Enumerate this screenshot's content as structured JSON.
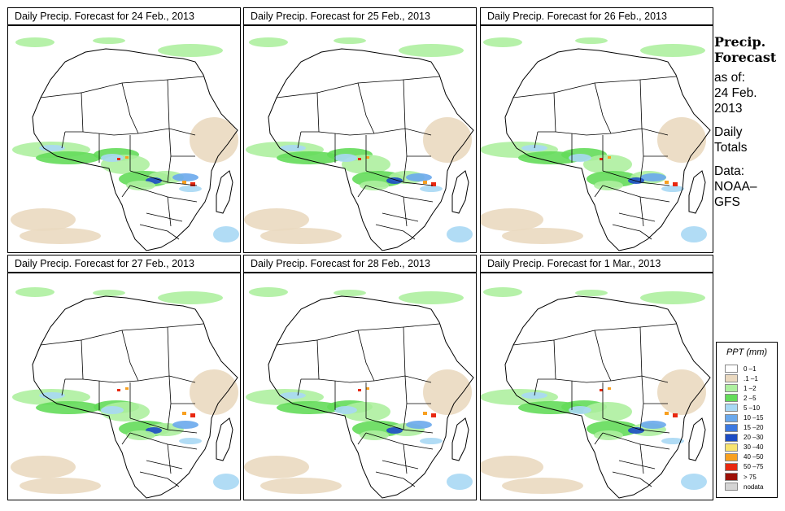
{
  "panels": [
    {
      "title": "Daily Precip. Forecast for  24 Feb., 2013"
    },
    {
      "title": "Daily Precip. Forecast for  25 Feb., 2013"
    },
    {
      "title": "Daily Precip. Forecast for  26 Feb., 2013"
    },
    {
      "title": "Daily Precip. Forecast for  27 Feb., 2013"
    },
    {
      "title": "Daily Precip. Forecast for  28 Feb., 2013"
    },
    {
      "title": "Daily Precip. Forecast for  1 Mar., 2013"
    }
  ],
  "side": {
    "heading1": "Precip.",
    "heading2": "Forecast",
    "as_of": "as of:",
    "date1": "24 Feb.",
    "date2": "2013",
    "daily1": "Daily",
    "daily2": "Totals",
    "data1": "Data:",
    "data2": "NOAA–",
    "data3": "GFS"
  },
  "legend": {
    "title": "PPT (mm)",
    "items": [
      {
        "label": "0 –1",
        "color": "#ffffff"
      },
      {
        "label": ".1 –1",
        "color": "#ead9c0"
      },
      {
        "label": "1 –2",
        "color": "#aef0a0"
      },
      {
        "label": "2 –5",
        "color": "#64dc5a"
      },
      {
        "label": "5 –10",
        "color": "#a8d8f4"
      },
      {
        "label": "10 –15",
        "color": "#6aa8ec"
      },
      {
        "label": "15 –20",
        "color": "#3c78e0"
      },
      {
        "label": "20 –30",
        "color": "#1c4cc4"
      },
      {
        "label": "30 –40",
        "color": "#f8e470"
      },
      {
        "label": "40 –50",
        "color": "#f8a020"
      },
      {
        "label": "50 –75",
        "color": "#e82810"
      },
      {
        "label": "> 75",
        "color": "#9c1008"
      },
      {
        "label": "nodata",
        "color": "#d4d4d4"
      }
    ]
  }
}
